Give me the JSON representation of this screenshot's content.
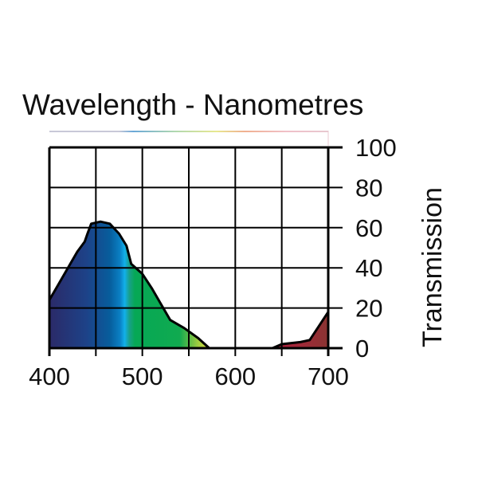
{
  "chart_data": {
    "type": "area",
    "title": "Wavelength - Nanometres",
    "xlabel": "",
    "ylabel": "Transmission",
    "xlim": [
      400,
      700
    ],
    "ylim": [
      0,
      100
    ],
    "x_ticks": [
      400,
      500,
      600,
      700
    ],
    "x_tick_labels": [
      "400",
      "500",
      "600",
      "700"
    ],
    "y_ticks": [
      0,
      20,
      40,
      60,
      80,
      100
    ],
    "y_tick_labels": [
      "0",
      "20",
      "40",
      "60",
      "80",
      "100"
    ],
    "grid": true,
    "grid_x_step": 50,
    "series": [
      {
        "name": "Transmission",
        "x": [
          400,
          410,
          420,
          430,
          438,
          441,
          445,
          455,
          465,
          475,
          483,
          488,
          500,
          510,
          520,
          530,
          545,
          560,
          572,
          640,
          650,
          670,
          680,
          700
        ],
        "y": [
          24,
          32,
          40,
          48,
          53,
          57,
          62,
          63,
          62,
          57,
          51,
          42,
          37,
          30,
          22,
          14,
          10,
          5,
          0,
          0,
          2,
          3,
          4,
          18
        ]
      }
    ],
    "fill_gradient": [
      {
        "nm": 400,
        "color": "#2b2a68"
      },
      {
        "nm": 440,
        "color": "#1d4288"
      },
      {
        "nm": 465,
        "color": "#075d9c"
      },
      {
        "nm": 476,
        "color": "#0a80c4"
      },
      {
        "nm": 481,
        "color": "#12b0ea"
      },
      {
        "nm": 486,
        "color": "#18a08a"
      },
      {
        "nm": 492,
        "color": "#06a855"
      },
      {
        "nm": 540,
        "color": "#10aa50"
      },
      {
        "nm": 560,
        "color": "#a0cc40"
      },
      {
        "nm": 572,
        "color": "#e0e040"
      },
      {
        "nm": 640,
        "color": "#b51e3e"
      },
      {
        "nm": 700,
        "color": "#8a3432"
      }
    ]
  }
}
